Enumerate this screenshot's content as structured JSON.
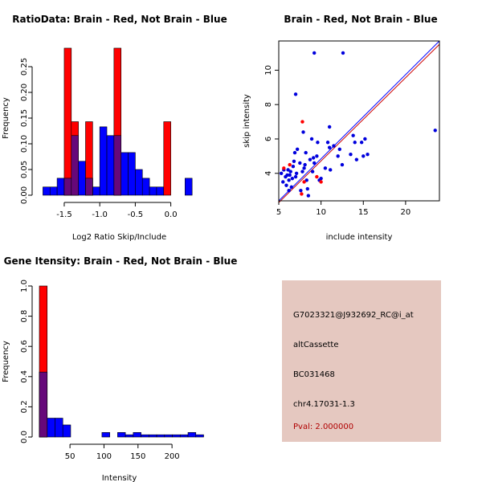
{
  "chart_data": [
    {
      "type": "bar",
      "title": "RatioData: Brain - Red, Not Brain - Blue",
      "xlabel": "Log2 Ratio Skip/Include",
      "ylabel": "Frequency",
      "xlim": [
        -1.85,
        0.4
      ],
      "ylim": [
        0,
        0.3
      ],
      "xticks": [
        -1.5,
        -1.0,
        -0.5,
        0.0
      ],
      "xtick_labels": [
        "-1.5",
        "-1.0",
        "-0.5",
        "0.0"
      ],
      "yticks": [
        0.0,
        0.05,
        0.1,
        0.15,
        0.2,
        0.25
      ],
      "ytick_labels": [
        "0.00",
        "0.05",
        "0.10",
        "0.15",
        "0.20",
        "0.25"
      ],
      "bin_width": 0.1,
      "series": [
        {
          "name": "Not Brain",
          "color": "#0000ff",
          "bin_starts": [
            -1.8,
            -1.7,
            -1.6,
            -1.5,
            -1.4,
            -1.3,
            -1.2,
            -1.1,
            -1.0,
            -0.9,
            -0.8,
            -0.7,
            -0.6,
            -0.5,
            -0.4,
            -0.3,
            -0.2,
            0.2
          ],
          "values": [
            0.016,
            0.016,
            0.033,
            0.033,
            0.116,
            0.066,
            0.033,
            0.016,
            0.133,
            0.116,
            0.116,
            0.083,
            0.083,
            0.05,
            0.033,
            0.016,
            0.016,
            0.033
          ]
        },
        {
          "name": "Brain",
          "color": "#ff0000",
          "bin_starts": [
            -1.5,
            -1.4,
            -1.2,
            -0.8,
            -0.1
          ],
          "values": [
            0.286,
            0.143,
            0.143,
            0.286,
            0.143
          ]
        }
      ]
    },
    {
      "type": "scatter",
      "title": "Brain - Red, Not Brain - Blue",
      "xlabel": "include intensity",
      "ylabel": "skip intensity",
      "xlim": [
        5,
        24
      ],
      "ylim": [
        2.4,
        11.7
      ],
      "xticks": [
        5,
        10,
        15,
        20
      ],
      "xtick_labels": [
        "5",
        "10",
        "15",
        "20"
      ],
      "yticks": [
        4,
        6,
        8,
        10
      ],
      "ytick_labels": [
        "4",
        "6",
        "8",
        "10"
      ],
      "lines": [
        {
          "name": "Not Brain fit",
          "color": "#0000ff",
          "from": [
            5.0,
            2.4
          ],
          "to": [
            24.0,
            11.7
          ]
        },
        {
          "name": "Brain fit",
          "color": "#cc0000",
          "from": [
            5.0,
            2.3
          ],
          "to": [
            24.0,
            11.5
          ]
        }
      ],
      "series": [
        {
          "name": "Not Brain",
          "color": "#0000dd",
          "points": [
            [
              5.3,
              4.0
            ],
            [
              5.6,
              4.2
            ],
            [
              5.5,
              3.5
            ],
            [
              5.8,
              3.8
            ],
            [
              6.0,
              3.9
            ],
            [
              6.1,
              4.2
            ],
            [
              6.2,
              3.6
            ],
            [
              6.3,
              3.9
            ],
            [
              6.4,
              4.1
            ],
            [
              6.5,
              3.2
            ],
            [
              6.6,
              3.7
            ],
            [
              6.7,
              4.4
            ],
            [
              6.9,
              5.2
            ],
            [
              7.0,
              3.8
            ],
            [
              7.1,
              4.0
            ],
            [
              7.2,
              5.4
            ],
            [
              7.5,
              4.6
            ],
            [
              7.6,
              3.0
            ],
            [
              7.8,
              4.1
            ],
            [
              8.0,
              4.3
            ],
            [
              8.1,
              4.5
            ],
            [
              8.2,
              5.2
            ],
            [
              8.3,
              3.6
            ],
            [
              8.5,
              2.7
            ],
            [
              8.7,
              4.8
            ],
            [
              9.0,
              4.1
            ],
            [
              9.2,
              4.6
            ],
            [
              9.5,
              5.0
            ],
            [
              9.8,
              3.6
            ],
            [
              10.0,
              3.7
            ],
            [
              10.5,
              4.3
            ],
            [
              11.0,
              5.5
            ],
            [
              11.0,
              6.7
            ],
            [
              11.1,
              4.2
            ],
            [
              11.5,
              5.6
            ],
            [
              12.0,
              5.0
            ],
            [
              12.5,
              4.5
            ],
            [
              13.5,
              5.1
            ],
            [
              13.8,
              6.2
            ],
            [
              14.0,
              5.8
            ],
            [
              14.2,
              4.8
            ],
            [
              14.8,
              5.8
            ],
            [
              15.0,
              5.0
            ],
            [
              15.2,
              6.0
            ],
            [
              15.5,
              5.1
            ],
            [
              9.2,
              11.0
            ],
            [
              12.6,
              11.0
            ],
            [
              7.0,
              8.6
            ],
            [
              23.5,
              6.5
            ],
            [
              8.9,
              6.0
            ],
            [
              9.6,
              5.8
            ],
            [
              6.8,
              4.7
            ],
            [
              7.9,
              6.4
            ],
            [
              8.4,
              3.1
            ],
            [
              10.8,
              5.8
            ],
            [
              5.9,
              3.3
            ],
            [
              6.2,
              3.0
            ],
            [
              12.2,
              5.4
            ],
            [
              9.1,
              4.9
            ]
          ]
        },
        {
          "name": "Brain",
          "color": "#ff0000",
          "points": [
            [
              7.8,
              7.0
            ],
            [
              7.7,
              2.8
            ],
            [
              8.0,
              3.5
            ],
            [
              6.3,
              4.5
            ],
            [
              9.5,
              3.8
            ],
            [
              10.0,
              3.5
            ],
            [
              5.6,
              4.3
            ]
          ]
        }
      ]
    },
    {
      "type": "bar",
      "title": "Gene Itensity: Brain - Red, Not Brain - Blue",
      "xlabel": "Intensity",
      "ylabel": "Frequency",
      "xlim": [
        5,
        240
      ],
      "ylim": [
        0,
        1.0
      ],
      "xticks": [
        50,
        100,
        150,
        200
      ],
      "xtick_labels": [
        "50",
        "100",
        "150",
        "200"
      ],
      "yticks": [
        0.0,
        0.2,
        0.4,
        0.6,
        0.8,
        1.0
      ],
      "ytick_labels": [
        "0.0",
        "0.2",
        "0.4",
        "0.6",
        "0.8",
        "1.0"
      ],
      "bin_width": 11.5,
      "series": [
        {
          "name": "Not Brain",
          "color": "#0000ff",
          "bin_starts": [
            5,
            16.5,
            28,
            39.5,
            97,
            120,
            131.5,
            143,
            154.5,
            166,
            177.5,
            189,
            200.5,
            212,
            223.5,
            235
          ],
          "values": [
            0.43,
            0.125,
            0.125,
            0.08,
            0.03,
            0.03,
            0.015,
            0.03,
            0.015,
            0.015,
            0.015,
            0.015,
            0.015,
            0.015,
            0.03,
            0.015
          ]
        },
        {
          "name": "Brain",
          "color": "#ff0000",
          "bin_starts": [
            5
          ],
          "values": [
            1.0
          ]
        }
      ]
    }
  ],
  "info": {
    "probe": "G7023321@J932692_RC@i_at",
    "event_type": "altCassette",
    "accession": "BC031468",
    "location": "chr4.17031-1.3",
    "pval": "Pval: 2.000000"
  }
}
